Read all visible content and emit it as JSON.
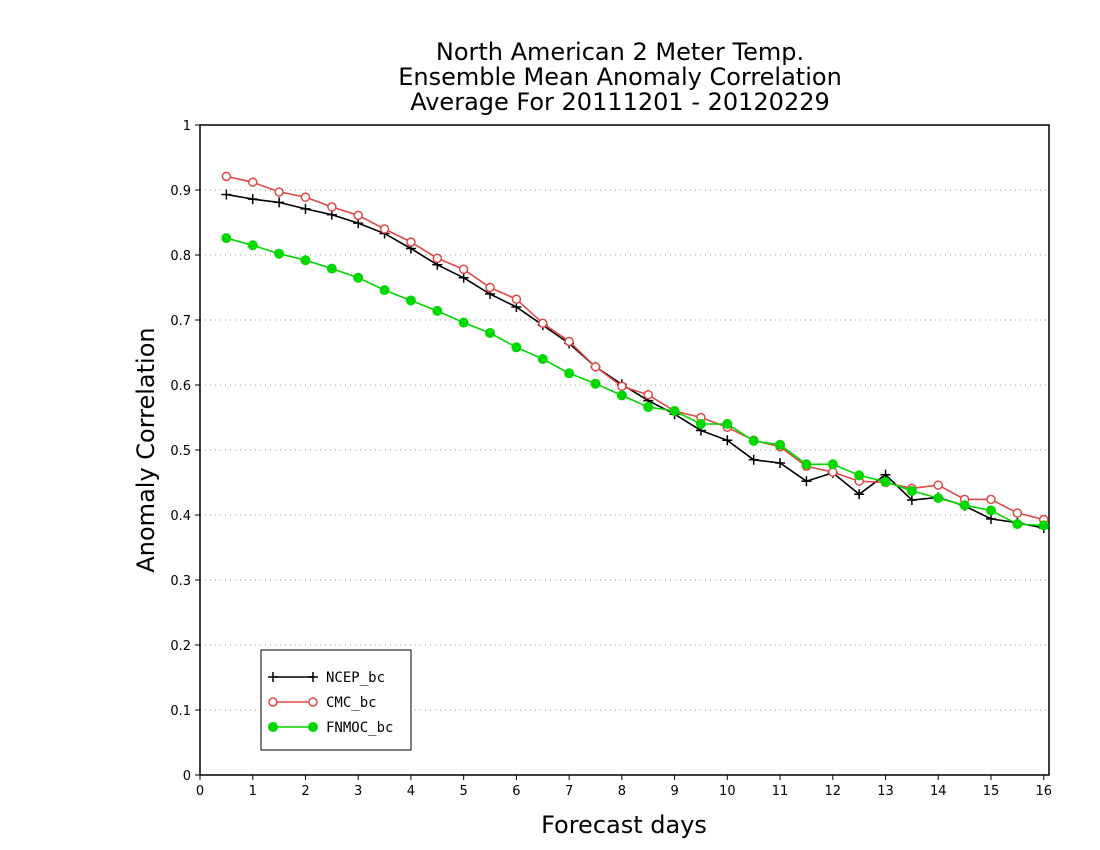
{
  "chart_data": {
    "type": "line",
    "title_lines": [
      "North American 2 Meter Temp.",
      "Ensemble Mean Anomaly Correlation",
      "Average For 20111201 - 20120229"
    ],
    "xlabel": "Forecast days",
    "ylabel": "Anomaly Correlation",
    "xlim": [
      0,
      16.1
    ],
    "ylim": [
      0,
      1
    ],
    "xticks": [
      0,
      1,
      2,
      3,
      4,
      5,
      6,
      7,
      8,
      9,
      10,
      11,
      12,
      13,
      14,
      15,
      16
    ],
    "xtick_labels": [
      "0",
      "1",
      "2",
      "3",
      "4",
      "5",
      "6",
      "7",
      "8",
      "9",
      "10",
      "11",
      "12",
      "13",
      "14",
      "15",
      "16"
    ],
    "yticks": [
      0,
      0.1,
      0.2,
      0.3,
      0.4,
      0.5,
      0.6,
      0.7,
      0.8,
      0.9,
      1
    ],
    "ytick_labels": [
      "0",
      "0.1",
      "0.2",
      "0.3",
      "0.4",
      "0.5",
      "0.6",
      "0.7",
      "0.8",
      "0.9",
      "1"
    ],
    "grid": "horizontal-dotted",
    "legend_position": "bottom-left",
    "x": [
      0.5,
      1,
      1.5,
      2,
      2.5,
      3,
      3.5,
      4,
      4.5,
      5,
      5.5,
      6,
      6.5,
      7,
      7.5,
      8,
      8.5,
      9,
      9.5,
      10,
      10.5,
      11,
      11.5,
      12,
      12.5,
      13,
      13.5,
      14,
      14.5,
      15,
      15.5,
      16
    ],
    "series": [
      {
        "name": "NCEP_bc",
        "color": "#000000",
        "marker": "plus",
        "values": [
          0.893,
          0.886,
          0.881,
          0.871,
          0.862,
          0.849,
          0.833,
          0.81,
          0.785,
          0.765,
          0.74,
          0.72,
          0.692,
          0.664,
          0.628,
          0.601,
          0.576,
          0.555,
          0.53,
          0.515,
          0.485,
          0.48,
          0.452,
          0.465,
          0.432,
          0.462,
          0.423,
          0.427,
          0.414,
          0.394,
          0.388,
          0.38
        ]
      },
      {
        "name": "CMC_bc",
        "color": "#e04848",
        "marker": "open-circle",
        "values": [
          0.921,
          0.912,
          0.897,
          0.889,
          0.874,
          0.861,
          0.84,
          0.82,
          0.795,
          0.778,
          0.75,
          0.732,
          0.695,
          0.667,
          0.628,
          0.598,
          0.585,
          0.56,
          0.55,
          0.535,
          0.515,
          0.505,
          0.475,
          0.466,
          0.452,
          0.45,
          0.441,
          0.446,
          0.424,
          0.424,
          0.403,
          0.393
        ]
      },
      {
        "name": "FNMOC_bc",
        "color": "#00d800",
        "marker": "filled-circle",
        "values": [
          0.826,
          0.815,
          0.802,
          0.792,
          0.779,
          0.765,
          0.746,
          0.73,
          0.714,
          0.696,
          0.68,
          0.658,
          0.64,
          0.618,
          0.602,
          0.584,
          0.566,
          0.56,
          0.54,
          0.54,
          0.514,
          0.508,
          0.478,
          0.478,
          0.461,
          0.451,
          0.437,
          0.426,
          0.415,
          0.407,
          0.386,
          0.384
        ]
      }
    ]
  }
}
